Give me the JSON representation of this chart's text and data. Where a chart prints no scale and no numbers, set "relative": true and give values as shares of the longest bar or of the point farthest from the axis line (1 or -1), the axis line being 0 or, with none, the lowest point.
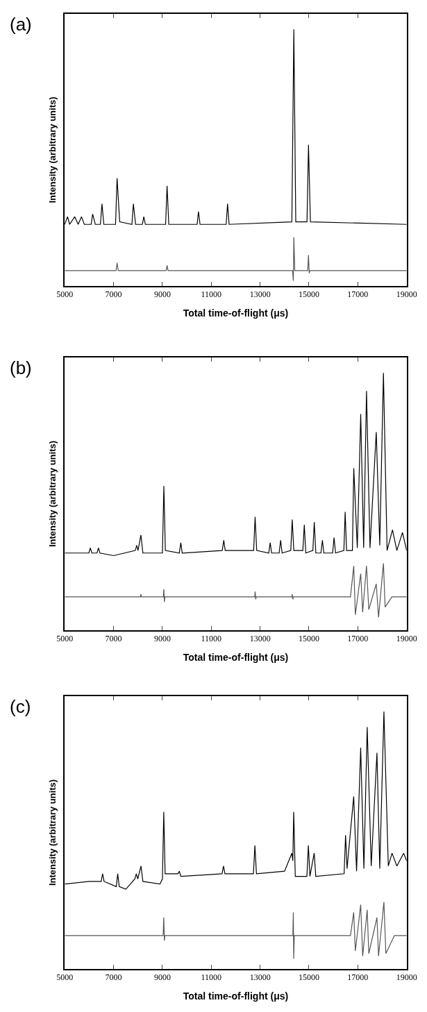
{
  "chart_data": [
    {
      "type": "line",
      "title": "(a)",
      "xlabel": "Total time-of-flight (μs)",
      "ylabel": "Intensity (arbitrary units)",
      "relative": true,
      "xlim": [
        5000,
        19000
      ],
      "xticks": [
        5000,
        7000,
        9000,
        11000,
        13000,
        15000,
        17000,
        19000
      ],
      "series": [
        {
          "color": "#000000",
          "x": [
            5000,
            5114,
            5200,
            5410,
            5550,
            5686,
            5800,
            6080,
            6143,
            6250,
            6460,
            6524,
            6600,
            7080,
            7143,
            7250,
            7750,
            7810,
            7900,
            8180,
            8238,
            8300,
            9130,
            9190,
            9260,
            10420,
            10476,
            10540,
            11610,
            11667,
            11730,
            14300,
            14381,
            14460,
            14920,
            14981,
            15060,
            19000
          ],
          "values": [
            0.24,
            0.27,
            0.24,
            0.27,
            0.24,
            0.27,
            0.24,
            0.24,
            0.28,
            0.24,
            0.24,
            0.32,
            0.24,
            0.24,
            0.42,
            0.25,
            0.24,
            0.32,
            0.24,
            0.24,
            0.27,
            0.24,
            0.24,
            0.39,
            0.24,
            0.24,
            0.29,
            0.24,
            0.24,
            0.32,
            0.24,
            0.25,
            1.0,
            0.25,
            0.25,
            0.55,
            0.25,
            0.24
          ]
        },
        {
          "color": "#555555",
          "x": [
            5000,
            7100,
            7143,
            7190,
            9150,
            9190,
            9230,
            14330,
            14360,
            14381,
            14420,
            14950,
            14981,
            15010,
            15040,
            19000
          ],
          "values": [
            0.06,
            0.06,
            0.09,
            0.06,
            0.06,
            0.08,
            0.06,
            0.06,
            0.02,
            0.19,
            0.06,
            0.06,
            0.12,
            0.05,
            0.06,
            0.06
          ]
        }
      ]
    },
    {
      "type": "line",
      "title": "(b)",
      "xlabel": "Total time-of-flight (μs)",
      "ylabel": "Intensity (arbitrary units)",
      "relative": true,
      "xlim": [
        5000,
        19000
      ],
      "xticks": [
        5000,
        7000,
        9000,
        11000,
        13000,
        15000,
        17000,
        19000
      ],
      "series": [
        {
          "color": "#000000",
          "x": [
            5000,
            5986,
            6046,
            6110,
            6320,
            6380,
            6440,
            7000,
            7887,
            7947,
            8000,
            8118,
            8200,
            9000,
            9059,
            9120,
            9690,
            9753,
            9810,
            11450,
            11512,
            11570,
            12735,
            12795,
            12860,
            13353,
            13413,
            13470,
            13780,
            13840,
            13900,
            14255,
            14315,
            14380,
            14750,
            14810,
            14870,
            15160,
            15218,
            15280,
            15490,
            15551,
            15610,
            15970,
            16027,
            16090,
            16430,
            16483,
            16540,
            16780,
            16835,
            16980,
            17120,
            17240,
            17357,
            17500,
            17756,
            17900,
            18050,
            18200,
            18421,
            18600,
            18830,
            19000
          ],
          "values": [
            0.3,
            0.3,
            0.32,
            0.3,
            0.3,
            0.32,
            0.3,
            0.29,
            0.31,
            0.33,
            0.31,
            0.37,
            0.3,
            0.3,
            0.56,
            0.31,
            0.3,
            0.34,
            0.3,
            0.31,
            0.35,
            0.31,
            0.31,
            0.44,
            0.31,
            0.3,
            0.34,
            0.3,
            0.3,
            0.35,
            0.3,
            0.31,
            0.43,
            0.31,
            0.31,
            0.41,
            0.3,
            0.31,
            0.42,
            0.3,
            0.3,
            0.35,
            0.3,
            0.3,
            0.36,
            0.3,
            0.31,
            0.46,
            0.31,
            0.31,
            0.63,
            0.32,
            0.84,
            0.32,
            0.93,
            0.32,
            0.77,
            0.33,
            1.0,
            0.31,
            0.39,
            0.31,
            0.38,
            0.31
          ]
        },
        {
          "color": "#555555",
          "x": [
            5000,
            8100,
            8118,
            8140,
            9040,
            9059,
            9080,
            9100,
            12780,
            12795,
            12820,
            12840,
            14300,
            14315,
            14340,
            14360,
            16700,
            16835,
            16900,
            17120,
            17200,
            17357,
            17450,
            17756,
            17850,
            18050,
            18120,
            18400,
            19000
          ],
          "values": [
            0.13,
            0.13,
            0.14,
            0.13,
            0.13,
            0.16,
            0.11,
            0.13,
            0.13,
            0.15,
            0.12,
            0.13,
            0.13,
            0.14,
            0.12,
            0.13,
            0.13,
            0.25,
            0.06,
            0.22,
            0.07,
            0.25,
            0.08,
            0.18,
            0.05,
            0.26,
            0.09,
            0.13,
            0.13
          ]
        }
      ]
    },
    {
      "type": "line",
      "title": "(c)",
      "xlabel": "Total time-of-flight (μs)",
      "ylabel": "Intensity (arbitrary units)",
      "relative": true,
      "xlim": [
        5000,
        19000
      ],
      "xticks": [
        5000,
        7000,
        9000,
        11000,
        13000,
        15000,
        17000,
        19000
      ],
      "series": [
        {
          "color": "#000000",
          "x": [
            5000,
            6000,
            6490,
            6552,
            6610,
            7110,
            7170,
            7230,
            7500,
            7871,
            7931,
            7990,
            8122,
            8200,
            8900,
            9000,
            9055,
            9110,
            9633,
            9693,
            9750,
            11441,
            11501,
            11560,
            12726,
            12786,
            12850,
            14000,
            14300,
            14340,
            14376,
            14440,
            14916,
            14976,
            15040,
            15214,
            15280,
            16440,
            16500,
            16560,
            16833,
            16950,
            17119,
            17250,
            17385,
            17550,
            17785,
            17900,
            18070,
            18250,
            18403,
            18600,
            18879,
            19000
          ],
          "values": [
            0.33,
            0.34,
            0.34,
            0.37,
            0.34,
            0.32,
            0.37,
            0.32,
            0.31,
            0.35,
            0.37,
            0.35,
            0.4,
            0.34,
            0.33,
            0.35,
            0.61,
            0.37,
            0.37,
            0.38,
            0.36,
            0.37,
            0.4,
            0.37,
            0.37,
            0.48,
            0.37,
            0.38,
            0.45,
            0.42,
            0.61,
            0.36,
            0.36,
            0.48,
            0.36,
            0.45,
            0.36,
            0.37,
            0.52,
            0.39,
            0.67,
            0.38,
            0.86,
            0.39,
            0.94,
            0.4,
            0.84,
            0.39,
            1.0,
            0.4,
            0.45,
            0.4,
            0.45,
            0.42
          ]
        },
        {
          "color": "#555555",
          "x": [
            5000,
            9030,
            9055,
            9080,
            9100,
            14340,
            14360,
            14376,
            14400,
            16700,
            16833,
            16900,
            17119,
            17200,
            17385,
            17450,
            17785,
            17850,
            18070,
            18150,
            18500,
            19000
          ],
          "values": [
            0.13,
            0.13,
            0.2,
            0.11,
            0.13,
            0.13,
            0.22,
            0.04,
            0.13,
            0.13,
            0.22,
            0.07,
            0.25,
            0.05,
            0.23,
            0.06,
            0.2,
            0.05,
            0.26,
            0.06,
            0.13,
            0.13
          ]
        }
      ]
    }
  ]
}
